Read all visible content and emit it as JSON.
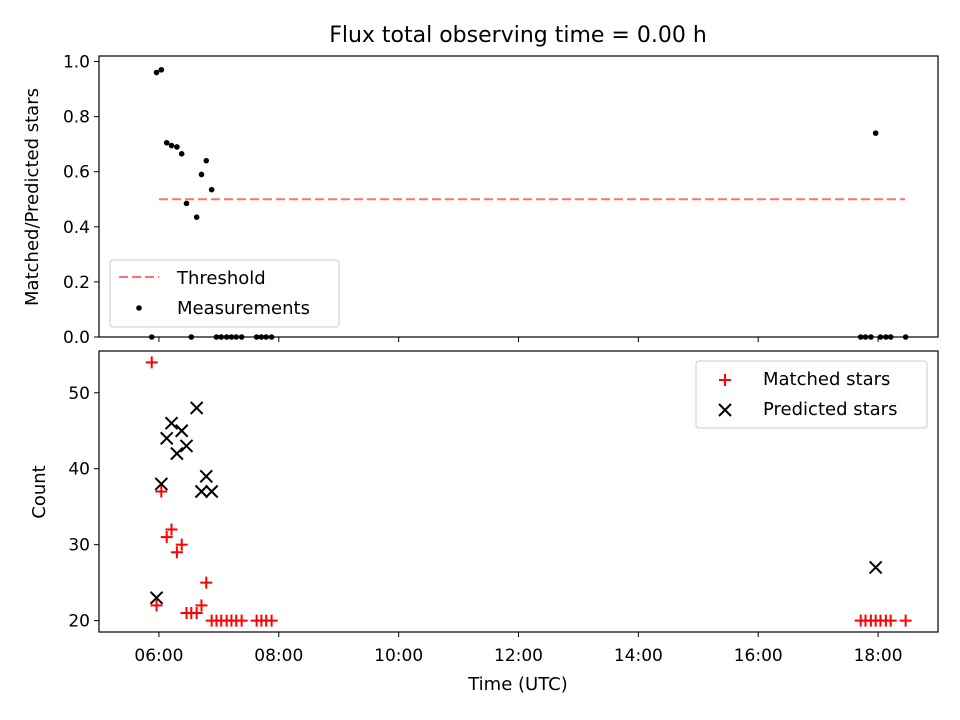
{
  "figure_title": "Flux total observing time = 0.00 h",
  "x_axis": {
    "label": "Time (UTC)",
    "range_hours": [
      5.0,
      19.0
    ],
    "ticks": [
      {
        "hour": 6,
        "label": "06:00"
      },
      {
        "hour": 8,
        "label": "08:00"
      },
      {
        "hour": 10,
        "label": "10:00"
      },
      {
        "hour": 12,
        "label": "12:00"
      },
      {
        "hour": 14,
        "label": "14:00"
      },
      {
        "hour": 16,
        "label": "16:00"
      },
      {
        "hour": 18,
        "label": "18:00"
      }
    ]
  },
  "chart_data": [
    {
      "type": "scatter",
      "ylabel": "Matched/Predicted stars",
      "ylim": [
        0.0,
        1.02
      ],
      "yticks": [
        "0.0",
        "0.2",
        "0.4",
        "0.6",
        "0.8",
        "1.0"
      ],
      "legend_position": "lower-left",
      "legend": [
        "Threshold",
        "Measurements"
      ],
      "threshold": {
        "value": 0.5,
        "x_start": 6.0,
        "x_end": 18.45,
        "color": "#ff7070"
      },
      "measurements": [
        {
          "x": 5.88,
          "y": 0.0
        },
        {
          "x": 5.96,
          "y": 0.96
        },
        {
          "x": 6.04,
          "y": 0.97
        },
        {
          "x": 6.13,
          "y": 0.705
        },
        {
          "x": 6.21,
          "y": 0.695
        },
        {
          "x": 6.3,
          "y": 0.69
        },
        {
          "x": 6.38,
          "y": 0.665
        },
        {
          "x": 6.46,
          "y": 0.485
        },
        {
          "x": 6.54,
          "y": 0.0
        },
        {
          "x": 6.63,
          "y": 0.435
        },
        {
          "x": 6.71,
          "y": 0.59
        },
        {
          "x": 6.79,
          "y": 0.64
        },
        {
          "x": 6.88,
          "y": 0.535
        },
        {
          "x": 6.96,
          "y": 0.0
        },
        {
          "x": 7.04,
          "y": 0.0
        },
        {
          "x": 7.13,
          "y": 0.0
        },
        {
          "x": 7.21,
          "y": 0.0
        },
        {
          "x": 7.29,
          "y": 0.0
        },
        {
          "x": 7.38,
          "y": 0.0
        },
        {
          "x": 7.63,
          "y": 0.0
        },
        {
          "x": 7.71,
          "y": 0.0
        },
        {
          "x": 7.79,
          "y": 0.0
        },
        {
          "x": 7.88,
          "y": 0.0
        },
        {
          "x": 17.71,
          "y": 0.0
        },
        {
          "x": 17.79,
          "y": 0.0
        },
        {
          "x": 17.88,
          "y": 0.0
        },
        {
          "x": 17.96,
          "y": 0.74
        },
        {
          "x": 18.04,
          "y": 0.0
        },
        {
          "x": 18.13,
          "y": 0.0
        },
        {
          "x": 18.21,
          "y": 0.0
        },
        {
          "x": 18.46,
          "y": 0.0
        }
      ]
    },
    {
      "type": "scatter",
      "ylabel": "Count",
      "ylim": [
        18.5,
        55.5
      ],
      "yticks": [
        "20",
        "30",
        "40",
        "50"
      ],
      "ytick_values": [
        20,
        30,
        40,
        50
      ],
      "legend_position": "top-right",
      "series": [
        {
          "name": "Matched stars",
          "marker": "plus",
          "color": "#ff0000",
          "points": [
            {
              "x": 5.88,
              "y": 54
            },
            {
              "x": 5.96,
              "y": 22
            },
            {
              "x": 6.04,
              "y": 37
            },
            {
              "x": 6.13,
              "y": 31
            },
            {
              "x": 6.21,
              "y": 32
            },
            {
              "x": 6.3,
              "y": 29
            },
            {
              "x": 6.38,
              "y": 30
            },
            {
              "x": 6.46,
              "y": 21
            },
            {
              "x": 6.54,
              "y": 21
            },
            {
              "x": 6.63,
              "y": 21
            },
            {
              "x": 6.71,
              "y": 22
            },
            {
              "x": 6.79,
              "y": 25
            },
            {
              "x": 6.88,
              "y": 20
            },
            {
              "x": 6.96,
              "y": 20
            },
            {
              "x": 7.04,
              "y": 20
            },
            {
              "x": 7.13,
              "y": 20
            },
            {
              "x": 7.21,
              "y": 20
            },
            {
              "x": 7.29,
              "y": 20
            },
            {
              "x": 7.38,
              "y": 20
            },
            {
              "x": 7.63,
              "y": 20
            },
            {
              "x": 7.71,
              "y": 20
            },
            {
              "x": 7.79,
              "y": 20
            },
            {
              "x": 7.88,
              "y": 20
            },
            {
              "x": 17.71,
              "y": 20
            },
            {
              "x": 17.79,
              "y": 20
            },
            {
              "x": 17.88,
              "y": 20
            },
            {
              "x": 17.96,
              "y": 20
            },
            {
              "x": 18.04,
              "y": 20
            },
            {
              "x": 18.13,
              "y": 20
            },
            {
              "x": 18.21,
              "y": 20
            },
            {
              "x": 18.46,
              "y": 20
            }
          ]
        },
        {
          "name": "Predicted stars",
          "marker": "x",
          "color": "#000000",
          "points": [
            {
              "x": 5.96,
              "y": 23
            },
            {
              "x": 6.04,
              "y": 38
            },
            {
              "x": 6.13,
              "y": 44
            },
            {
              "x": 6.21,
              "y": 46
            },
            {
              "x": 6.3,
              "y": 42
            },
            {
              "x": 6.38,
              "y": 45
            },
            {
              "x": 6.46,
              "y": 43
            },
            {
              "x": 6.63,
              "y": 48
            },
            {
              "x": 6.71,
              "y": 37
            },
            {
              "x": 6.79,
              "y": 39
            },
            {
              "x": 6.88,
              "y": 37
            },
            {
              "x": 17.96,
              "y": 27
            }
          ]
        }
      ]
    }
  ]
}
